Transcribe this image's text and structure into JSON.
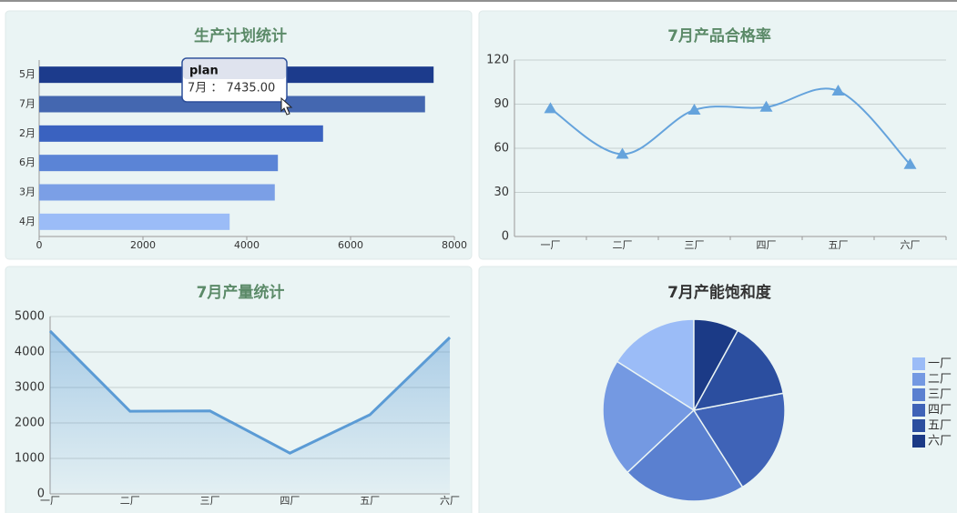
{
  "chart_data": [
    {
      "type": "bar",
      "orientation": "horizontal",
      "title": "生产计划统计",
      "categories": [
        "5月",
        "7月",
        "2月",
        "6月",
        "3月",
        "4月"
      ],
      "series": [
        {
          "name": "plan",
          "colors": [
            "#1c3b8c",
            "#4467b0",
            "#3a62c0",
            "#5b84d6",
            "#7b9fe6",
            "#9bbcf7"
          ],
          "values": [
            7600,
            7435,
            5470,
            4600,
            4540,
            3670
          ]
        }
      ],
      "xlim": [
        0,
        8000
      ],
      "xticks": [
        0,
        2000,
        4000,
        6000,
        8000
      ],
      "tooltip": "7月 ： 7435.00"
    },
    {
      "type": "line",
      "title": "7月产品合格率",
      "smooth": true,
      "marker": "triangle",
      "categories": [
        "一厂",
        "二厂",
        "三厂",
        "四厂",
        "五厂",
        "六厂"
      ],
      "series": [
        {
          "color": "#65a3dc",
          "values": [
            87,
            56,
            86,
            88,
            99,
            49
          ]
        }
      ],
      "ylim": [
        0,
        120
      ],
      "yticks": [
        0,
        30,
        60,
        90,
        120
      ],
      "grid": true
    },
    {
      "type": "area",
      "title": "7月产量统计",
      "categories": [
        "一厂",
        "二厂",
        "三厂",
        "四厂",
        "五厂",
        "六厂"
      ],
      "series": [
        {
          "color": "#5b9bd5",
          "values": [
            4590,
            2330,
            2340,
            1150,
            2230,
            4410
          ]
        }
      ],
      "ylim": [
        0,
        5000
      ],
      "yticks": [
        0,
        1000,
        2000,
        3000,
        4000,
        5000
      ],
      "grid": true
    },
    {
      "type": "pie",
      "title": "7月产能饱和度",
      "categories": [
        "一厂",
        "二厂",
        "三厂",
        "四厂",
        "五厂",
        "六厂"
      ],
      "values": [
        16,
        21,
        22,
        19,
        14,
        8
      ],
      "colors": [
        "#9bbcf7",
        "#7499e2",
        "#5a80d0",
        "#3f63b7",
        "#2b4e9f",
        "#1b3a86"
      ],
      "legend": "right"
    }
  ]
}
